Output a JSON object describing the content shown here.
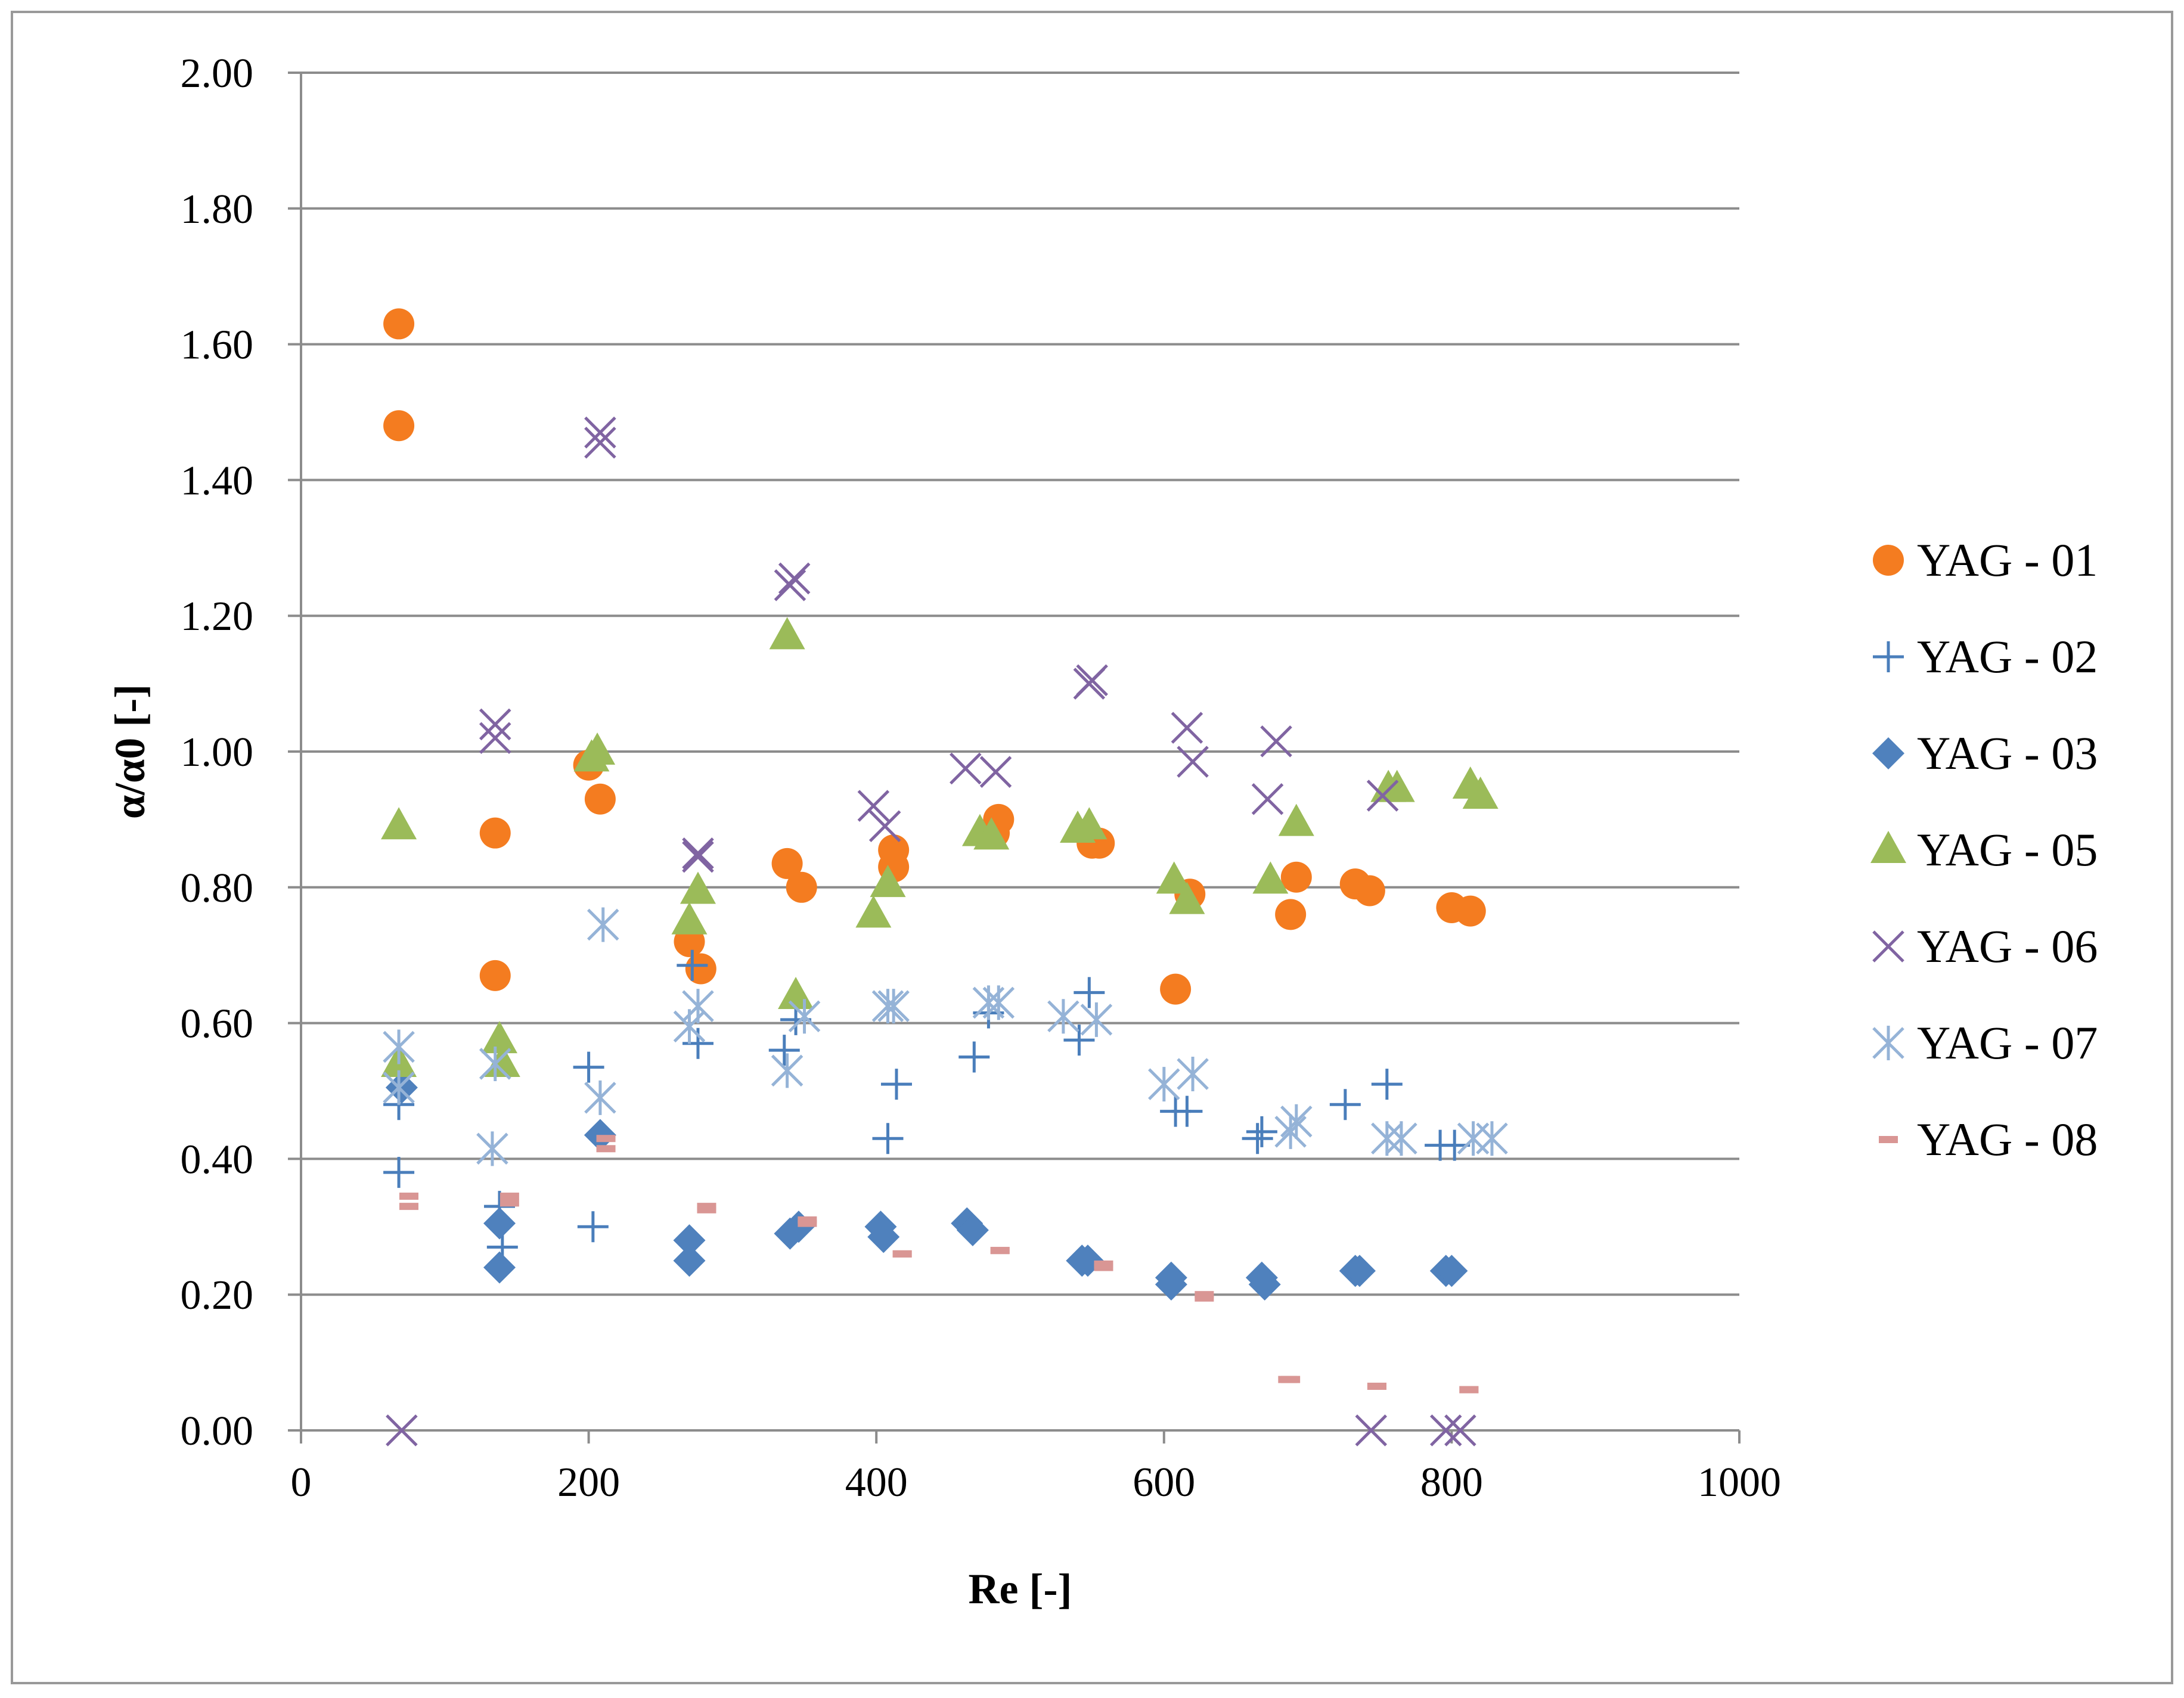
{
  "chart_data": {
    "type": "scatter",
    "title": "",
    "xlabel": "Re [-]",
    "ylabel": "α/α0 [-]",
    "xlim": [
      0,
      1000
    ],
    "ylim": [
      0,
      2
    ],
    "x_ticks": [
      0,
      200,
      400,
      600,
      800,
      1000
    ],
    "x_tick_labels": [
      "0",
      "200",
      "400",
      "600",
      "800",
      "1000"
    ],
    "y_ticks": [
      0,
      0.2,
      0.4,
      0.6,
      0.8,
      1.0,
      1.2,
      1.4,
      1.6,
      1.8,
      2.0
    ],
    "y_tick_labels": [
      "0.00",
      "0.20",
      "0.40",
      "0.60",
      "0.80",
      "1.00",
      "1.20",
      "1.40",
      "1.60",
      "1.80",
      "2.00"
    ],
    "grid": "horizontal",
    "legend_position": "right",
    "series": [
      {
        "name": "YAG - 01",
        "marker": "circle",
        "color": "#F47C20",
        "points": [
          [
            68,
            1.63
          ],
          [
            68,
            1.48
          ],
          [
            135,
            0.88
          ],
          [
            135,
            0.67
          ],
          [
            200,
            0.98
          ],
          [
            208,
            0.93
          ],
          [
            270,
            0.72
          ],
          [
            278,
            0.68
          ],
          [
            338,
            0.835
          ],
          [
            348,
            0.8
          ],
          [
            412,
            0.855
          ],
          [
            412,
            0.83
          ],
          [
            482,
            0.88
          ],
          [
            485,
            0.9
          ],
          [
            550,
            0.865
          ],
          [
            555,
            0.865
          ],
          [
            608,
            0.65
          ],
          [
            618,
            0.79
          ],
          [
            688,
            0.76
          ],
          [
            692,
            0.815
          ],
          [
            733,
            0.805
          ],
          [
            743,
            0.795
          ],
          [
            800,
            0.77
          ],
          [
            813,
            0.765
          ]
        ]
      },
      {
        "name": "YAG - 02",
        "marker": "plus",
        "color": "#4A7EBB",
        "points": [
          [
            68,
            0.48
          ],
          [
            68,
            0.38
          ],
          [
            138,
            0.33
          ],
          [
            140,
            0.27
          ],
          [
            200,
            0.535
          ],
          [
            203,
            0.3
          ],
          [
            272,
            0.685
          ],
          [
            276,
            0.57
          ],
          [
            336,
            0.56
          ],
          [
            344,
            0.605
          ],
          [
            408,
            0.43
          ],
          [
            414,
            0.51
          ],
          [
            468,
            0.55
          ],
          [
            478,
            0.615
          ],
          [
            541,
            0.575
          ],
          [
            548,
            0.645
          ],
          [
            608,
            0.47
          ],
          [
            616,
            0.47
          ],
          [
            665,
            0.43
          ],
          [
            668,
            0.44
          ],
          [
            726,
            0.48
          ],
          [
            755,
            0.51
          ],
          [
            792,
            0.42
          ],
          [
            802,
            0.42
          ]
        ]
      },
      {
        "name": "YAG - 03",
        "marker": "diamond",
        "color": "#4F81BD",
        "points": [
          [
            70,
            0.505
          ],
          [
            138,
            0.305
          ],
          [
            138,
            0.24
          ],
          [
            208,
            0.435
          ],
          [
            270,
            0.28
          ],
          [
            270,
            0.25
          ],
          [
            340,
            0.29
          ],
          [
            346,
            0.3
          ],
          [
            403,
            0.3
          ],
          [
            405,
            0.285
          ],
          [
            463,
            0.305
          ],
          [
            467,
            0.295
          ],
          [
            543,
            0.25
          ],
          [
            547,
            0.25
          ],
          [
            605,
            0.225
          ],
          [
            605,
            0.215
          ],
          [
            668,
            0.225
          ],
          [
            670,
            0.215
          ],
          [
            733,
            0.235
          ],
          [
            736,
            0.235
          ],
          [
            796,
            0.235
          ],
          [
            800,
            0.235
          ]
        ]
      },
      {
        "name": "YAG - 05",
        "marker": "triangle",
        "color": "#9BBB59",
        "points": [
          [
            68,
            0.89
          ],
          [
            68,
            0.54
          ],
          [
            138,
            0.575
          ],
          [
            140,
            0.54
          ],
          [
            202,
            0.99
          ],
          [
            206,
            1.0
          ],
          [
            270,
            0.75
          ],
          [
            276,
            0.795
          ],
          [
            338,
            1.17
          ],
          [
            344,
            0.64
          ],
          [
            398,
            0.76
          ],
          [
            408,
            0.805
          ],
          [
            472,
            0.88
          ],
          [
            480,
            0.875
          ],
          [
            540,
            0.885
          ],
          [
            548,
            0.89
          ],
          [
            607,
            0.81
          ],
          [
            616,
            0.78
          ],
          [
            674,
            0.81
          ],
          [
            692,
            0.895
          ],
          [
            756,
            0.945
          ],
          [
            762,
            0.945
          ],
          [
            813,
            0.95
          ],
          [
            820,
            0.935
          ]
        ]
      },
      {
        "name": "YAG - 06",
        "marker": "x",
        "color": "#8064A2",
        "points": [
          [
            70,
            0.0
          ],
          [
            135,
            1.04
          ],
          [
            135,
            1.02
          ],
          [
            208,
            1.47
          ],
          [
            208,
            1.455
          ],
          [
            276,
            0.845
          ],
          [
            276,
            0.85
          ],
          [
            340,
            1.245
          ],
          [
            343,
            1.255
          ],
          [
            398,
            0.92
          ],
          [
            406,
            0.89
          ],
          [
            462,
            0.975
          ],
          [
            483,
            0.97
          ],
          [
            548,
            1.1
          ],
          [
            550,
            1.105
          ],
          [
            616,
            1.035
          ],
          [
            620,
            0.985
          ],
          [
            672,
            0.93
          ],
          [
            678,
            1.015
          ],
          [
            744,
            0.0
          ],
          [
            752,
            0.935
          ],
          [
            796,
            0.0
          ],
          [
            806,
            0.0
          ]
        ]
      },
      {
        "name": "YAG - 07",
        "marker": "asterisk",
        "color": "#95B3D7",
        "points": [
          [
            68,
            0.565
          ],
          [
            68,
            0.505
          ],
          [
            133,
            0.415
          ],
          [
            135,
            0.54
          ],
          [
            210,
            0.745
          ],
          [
            208,
            0.49
          ],
          [
            270,
            0.595
          ],
          [
            276,
            0.625
          ],
          [
            338,
            0.53
          ],
          [
            350,
            0.61
          ],
          [
            408,
            0.625
          ],
          [
            412,
            0.625
          ],
          [
            478,
            0.63
          ],
          [
            485,
            0.63
          ],
          [
            530,
            0.61
          ],
          [
            553,
            0.605
          ],
          [
            600,
            0.51
          ],
          [
            620,
            0.525
          ],
          [
            688,
            0.44
          ],
          [
            692,
            0.455
          ],
          [
            755,
            0.43
          ],
          [
            765,
            0.43
          ],
          [
            815,
            0.43
          ],
          [
            828,
            0.43
          ]
        ]
      },
      {
        "name": "YAG - 08",
        "marker": "dash",
        "color": "#D99694",
        "points": [
          [
            75,
            0.345
          ],
          [
            75,
            0.33
          ],
          [
            145,
            0.345
          ],
          [
            145,
            0.335
          ],
          [
            212,
            0.43
          ],
          [
            212,
            0.415
          ],
          [
            282,
            0.325
          ],
          [
            282,
            0.33
          ],
          [
            352,
            0.31
          ],
          [
            352,
            0.305
          ],
          [
            418,
            0.26
          ],
          [
            418,
            0.26
          ],
          [
            486,
            0.265
          ],
          [
            486,
            0.265
          ],
          [
            558,
            0.245
          ],
          [
            558,
            0.24
          ],
          [
            628,
            0.2
          ],
          [
            628,
            0.195
          ],
          [
            686,
            0.075
          ],
          [
            688,
            0.075
          ],
          [
            748,
            0.065
          ],
          [
            748,
            0.065
          ],
          [
            812,
            0.06
          ],
          [
            812,
            0.06
          ]
        ]
      }
    ]
  }
}
